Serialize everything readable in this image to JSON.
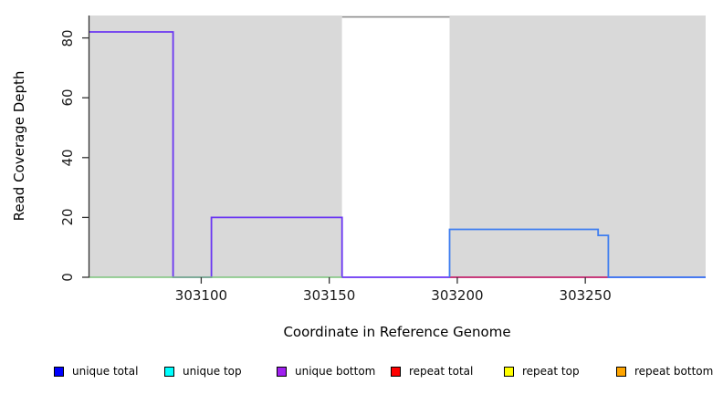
{
  "chart_data": {
    "type": "line",
    "subtype": "step-coverage-plot",
    "title": "",
    "xlabel": "Coordinate in Reference Genome",
    "ylabel": "Read Coverage Depth",
    "x_range": [
      303056,
      303297
    ],
    "y_range": [
      0,
      87.5
    ],
    "x_ticks": [
      303100,
      303150,
      303200,
      303250
    ],
    "y_ticks": [
      0,
      20,
      40,
      60,
      80
    ],
    "grid": "off",
    "panel_background": "#d9d9d9",
    "gap_background": "#ffffff",
    "background_regions": [
      {
        "x0": 303056,
        "x1": 303155,
        "color": "#d9d9d9"
      },
      {
        "x0": 303155,
        "x1": 303197,
        "color": "#ffffff"
      },
      {
        "x0": 303197,
        "x1": 303297,
        "color": "#d9d9d9"
      }
    ],
    "series": [
      {
        "name": "unique bottom coverage (purple step)",
        "color": "#6a36f2",
        "width": 1.8,
        "points": [
          [
            303056,
            82
          ],
          [
            303089,
            82
          ],
          [
            303089,
            0
          ],
          [
            303104,
            0
          ],
          [
            303104,
            20
          ],
          [
            303155,
            20
          ],
          [
            303155,
            0
          ],
          [
            303297,
            0
          ]
        ]
      },
      {
        "name": "zero coverage baseline left (green)",
        "color": "#7cc47c",
        "width": 1.6,
        "points": [
          [
            303056,
            0
          ],
          [
            303155,
            0
          ]
        ]
      },
      {
        "name": "repeat total zero baseline (red)",
        "color": "#dc2f55",
        "width": 1.6,
        "points": [
          [
            303197,
            0
          ],
          [
            303259,
            0
          ]
        ]
      },
      {
        "name": "unique total coverage right (blue step)",
        "color": "#3e7df0",
        "width": 1.8,
        "points": [
          [
            303197,
            0
          ],
          [
            303197,
            16
          ],
          [
            303255,
            16
          ],
          [
            303255,
            14
          ],
          [
            303259,
            14
          ],
          [
            303259,
            0
          ],
          [
            303297,
            0
          ]
        ]
      },
      {
        "name": "clipped peak over gap (gray)",
        "color": "#8c8c8c",
        "width": 1.6,
        "points": [
          [
            303155,
            87
          ],
          [
            303197,
            87
          ]
        ]
      }
    ],
    "legend_position": "bottom",
    "legend": [
      {
        "label": "unique total",
        "color": "#0000ff"
      },
      {
        "label": "unique top",
        "color": "#00ffff"
      },
      {
        "label": "unique bottom",
        "color": "#a020f0"
      },
      {
        "label": "repeat total",
        "color": "#ff0000"
      },
      {
        "label": "repeat top",
        "color": "#ffff00"
      },
      {
        "label": "repeat bottom",
        "color": "#ffa500"
      }
    ],
    "axis_color": "#333333"
  }
}
